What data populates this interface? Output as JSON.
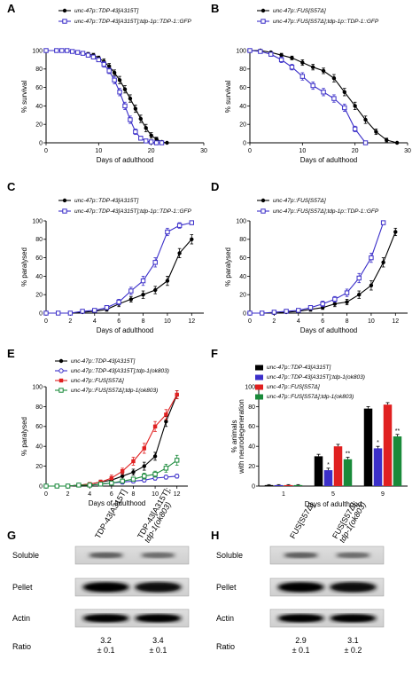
{
  "panels": [
    {
      "key": "A",
      "label": "A",
      "chart_data": {
        "type": "line",
        "xlabel": "Days of adulthood",
        "ylabel": "% survival",
        "xlim": [
          0,
          30
        ],
        "ylim": [
          0,
          100
        ],
        "xticks": [
          0,
          10,
          20,
          30
        ],
        "yticks": [
          0,
          20,
          40,
          60,
          80,
          100
        ],
        "series": [
          {
            "name": "unc-47p::TDP-43[A315T]",
            "color": "#000000",
            "marker": "circle",
            "x": [
              0,
              2,
              3,
              4,
              5,
              6,
              7,
              8,
              9,
              10,
              11,
              12,
              13,
              14,
              15,
              16,
              17,
              18,
              19,
              20,
              21,
              22,
              23
            ],
            "y": [
              100,
              100,
              100,
              100,
              99,
              98,
              97,
              96,
              95,
              92,
              88,
              83,
              76,
              68,
              58,
              48,
              37,
              26,
              16,
              8,
              4,
              1,
              0
            ],
            "err": [
              0,
              0,
              0,
              0,
              1,
              1,
              1,
              2,
              2,
              2,
              3,
              3,
              3,
              4,
              4,
              4,
              4,
              4,
              4,
              3,
              2,
              1,
              0
            ]
          },
          {
            "name": "unc-47p::TDP-43[A315T];tdp-1p::TDP-1::GFP",
            "color": "#3b2fc9",
            "marker": "square",
            "x": [
              0,
              2,
              3,
              4,
              5,
              6,
              7,
              8,
              9,
              10,
              11,
              12,
              13,
              14,
              15,
              16,
              17,
              18,
              19,
              20,
              21,
              22
            ],
            "y": [
              100,
              100,
              100,
              100,
              99,
              98,
              97,
              95,
              93,
              90,
              85,
              78,
              68,
              55,
              40,
              25,
              12,
              5,
              2,
              1,
              0,
              0
            ],
            "err": [
              0,
              0,
              0,
              0,
              1,
              1,
              1,
              2,
              2,
              2,
              3,
              3,
              4,
              4,
              4,
              4,
              3,
              2,
              1,
              1,
              0,
              0
            ]
          }
        ]
      }
    },
    {
      "key": "B",
      "label": "B",
      "chart_data": {
        "type": "line",
        "xlabel": "Days of adulthood",
        "ylabel": "% survival",
        "xlim": [
          0,
          30
        ],
        "ylim": [
          0,
          100
        ],
        "xticks": [
          0,
          10,
          20,
          30
        ],
        "yticks": [
          0,
          20,
          40,
          60,
          80,
          100
        ],
        "series": [
          {
            "name": "unc-47p::FUS[S57Δ]",
            "color": "#000000",
            "marker": "circle",
            "x": [
              0,
              2,
              4,
              6,
              8,
              10,
              12,
              14,
              16,
              18,
              20,
              22,
              24,
              26,
              28
            ],
            "y": [
              100,
              100,
              98,
              95,
              92,
              87,
              82,
              78,
              70,
              55,
              40,
              25,
              12,
              3,
              0
            ],
            "err": [
              0,
              0,
              1,
              2,
              2,
              3,
              3,
              3,
              4,
              4,
              4,
              4,
              3,
              2,
              0
            ]
          },
          {
            "name": "unc-47p::FUS[S57Δ];tdp-1p::TDP-1::GFP",
            "color": "#3b2fc9",
            "marker": "square",
            "x": [
              0,
              2,
              4,
              6,
              8,
              10,
              12,
              14,
              16,
              18,
              20,
              22
            ],
            "y": [
              100,
              99,
              96,
              90,
              82,
              72,
              62,
              55,
              48,
              38,
              15,
              0
            ],
            "err": [
              0,
              1,
              2,
              3,
              3,
              4,
              4,
              4,
              4,
              4,
              3,
              0
            ]
          }
        ]
      }
    },
    {
      "key": "C",
      "label": "C",
      "chart_data": {
        "type": "line",
        "xlabel": "Days of adulthood",
        "ylabel": "% paralysed",
        "xlim": [
          0,
          13
        ],
        "ylim": [
          0,
          100
        ],
        "xticks": [
          0,
          2,
          4,
          6,
          8,
          10,
          12
        ],
        "yticks": [
          0,
          20,
          40,
          60,
          80,
          100
        ],
        "series": [
          {
            "name": "unc-47p::TDP-43[A315T]",
            "color": "#000000",
            "marker": "circle",
            "x": [
              0,
              1,
              2,
              3,
              4,
              5,
              6,
              7,
              8,
              9,
              10,
              11,
              12
            ],
            "y": [
              0,
              0,
              0,
              1,
              2,
              4,
              10,
              15,
              20,
              25,
              35,
              65,
              80
            ],
            "err": [
              0,
              0,
              0,
              1,
              1,
              2,
              3,
              3,
              4,
              4,
              5,
              5,
              5
            ]
          },
          {
            "name": "unc-47p::TDP-43[A315T];tdp-1p::TDP-1::GFP",
            "color": "#3b2fc9",
            "marker": "square",
            "x": [
              0,
              1,
              2,
              3,
              4,
              5,
              6,
              7,
              8,
              9,
              10,
              11,
              12
            ],
            "y": [
              0,
              0,
              0,
              2,
              3,
              6,
              12,
              24,
              35,
              55,
              88,
              95,
              98
            ],
            "err": [
              0,
              0,
              0,
              1,
              1,
              2,
              3,
              4,
              5,
              5,
              4,
              3,
              2
            ]
          }
        ]
      }
    },
    {
      "key": "D",
      "label": "D",
      "chart_data": {
        "type": "line",
        "xlabel": "Days of adulthood",
        "ylabel": "% paralysed",
        "xlim": [
          0,
          13
        ],
        "ylim": [
          0,
          100
        ],
        "xticks": [
          0,
          2,
          4,
          6,
          8,
          10,
          12
        ],
        "yticks": [
          0,
          20,
          40,
          60,
          80,
          100
        ],
        "series": [
          {
            "name": "unc-47p::FUS[S57Δ]",
            "color": "#000000",
            "marker": "circle",
            "x": [
              0,
              1,
              2,
              3,
              4,
              5,
              6,
              7,
              8,
              9,
              10,
              11,
              12
            ],
            "y": [
              0,
              0,
              0,
              1,
              2,
              4,
              6,
              10,
              12,
              20,
              30,
              55,
              88
            ],
            "err": [
              0,
              0,
              0,
              1,
              1,
              2,
              2,
              3,
              3,
              4,
              5,
              5,
              4
            ]
          },
          {
            "name": "unc-47p::FUS[S57Δ];tdp-1p::TDP-1::GFP",
            "color": "#3b2fc9",
            "marker": "square",
            "x": [
              0,
              1,
              2,
              3,
              4,
              5,
              6,
              7,
              8,
              9,
              10,
              11
            ],
            "y": [
              0,
              0,
              1,
              2,
              3,
              6,
              10,
              15,
              22,
              38,
              60,
              98
            ],
            "err": [
              0,
              0,
              1,
              1,
              1,
              2,
              3,
              3,
              4,
              5,
              5,
              2
            ]
          }
        ]
      }
    },
    {
      "key": "E",
      "label": "E",
      "chart_data": {
        "type": "line",
        "xlabel": "Days of adulthood",
        "ylabel": "% paralysed",
        "xlim": [
          0,
          13
        ],
        "ylim": [
          0,
          100
        ],
        "xticks": [
          0,
          2,
          4,
          6,
          8,
          10,
          12
        ],
        "yticks": [
          0,
          20,
          40,
          60,
          80,
          100
        ],
        "series": [
          {
            "name": "unc-47p::TDP-43[A315T]",
            "color": "#000000",
            "marker": "circle",
            "x": [
              0,
              1,
              2,
              3,
              4,
              5,
              6,
              7,
              8,
              9,
              10,
              11,
              12
            ],
            "y": [
              0,
              0,
              0,
              1,
              2,
              4,
              6,
              10,
              14,
              20,
              30,
              65,
              92
            ],
            "err": [
              0,
              0,
              0,
              1,
              1,
              2,
              2,
              3,
              3,
              4,
              4,
              5,
              4
            ]
          },
          {
            "name": "unc-47p::TDP-43[A315T];tdp-1(ok803)",
            "color": "#3b2fc9",
            "marker": "circle-open",
            "x": [
              0,
              1,
              2,
              3,
              4,
              5,
              6,
              7,
              8,
              9,
              10,
              11,
              12
            ],
            "y": [
              0,
              0,
              0,
              1,
              1,
              2,
              3,
              4,
              5,
              6,
              8,
              9,
              10
            ],
            "err": [
              0,
              0,
              0,
              1,
              1,
              1,
              1,
              2,
              2,
              2,
              2,
              2,
              2
            ]
          },
          {
            "name": "unc-47p::FUS[S57Δ]",
            "color": "#e02020",
            "marker": "square-filled",
            "x": [
              0,
              1,
              2,
              3,
              4,
              5,
              6,
              7,
              8,
              9,
              10,
              11,
              12
            ],
            "y": [
              0,
              0,
              0,
              1,
              2,
              4,
              8,
              15,
              25,
              38,
              60,
              72,
              92
            ],
            "err": [
              0,
              0,
              0,
              1,
              1,
              2,
              3,
              3,
              4,
              5,
              5,
              5,
              4
            ]
          },
          {
            "name": "unc-47p::FUS[S57Δ];tdp-1(ok803)",
            "color": "#1a8a3a",
            "marker": "square",
            "x": [
              0,
              1,
              2,
              3,
              4,
              5,
              6,
              7,
              8,
              9,
              10,
              11,
              12
            ],
            "y": [
              0,
              0,
              0,
              1,
              1,
              2,
              3,
              5,
              7,
              10,
              12,
              18,
              26
            ],
            "err": [
              0,
              0,
              0,
              1,
              1,
              1,
              1,
              2,
              2,
              3,
              3,
              4,
              5
            ]
          }
        ]
      }
    },
    {
      "key": "F",
      "label": "F",
      "chart_data": {
        "type": "bar",
        "xlabel": "Days of adulthood",
        "ylabel": "% animals with neurodegeneration",
        "ylim": [
          0,
          100
        ],
        "yticks": [
          0,
          20,
          40,
          60,
          80,
          100
        ],
        "categories": [
          "1",
          "5",
          "9"
        ],
        "series": [
          {
            "name": "unc-47p::TDP-43[A315T]",
            "color": "#000000",
            "values": [
              1,
              30,
              78
            ],
            "err": [
              0.5,
              2,
              2
            ]
          },
          {
            "name": "unc-47p::TDP-43[A315T];tdp-1(ok803)",
            "color": "#3b2fc9",
            "values": [
              1,
              16,
              38
            ],
            "err": [
              0.5,
              2,
              2
            ]
          },
          {
            "name": "unc-47p::FUS[S57Δ]",
            "color": "#e02020",
            "values": [
              1,
              40,
              82
            ],
            "err": [
              0.5,
              2,
              2
            ]
          },
          {
            "name": "unc-47p::FUS[S57Δ];tdp-1(ok803)",
            "color": "#1a8a3a",
            "values": [
              1,
              27,
              50
            ],
            "err": [
              0.5,
              2,
              2
            ]
          }
        ],
        "annotations": [
          {
            "category": "5",
            "series": 1,
            "text": "*"
          },
          {
            "category": "5",
            "series": 3,
            "text": "**"
          },
          {
            "category": "9",
            "series": 1,
            "text": "*"
          },
          {
            "category": "9",
            "series": 3,
            "text": "**"
          }
        ]
      }
    }
  ],
  "blots": [
    {
      "key": "G",
      "label": "G",
      "lanes": [
        "TDP-43[A315T]",
        "TDP-43[A315T];\ntdp-1(ok803)"
      ],
      "rows": [
        "Soluble",
        "Pellet",
        "Actin"
      ],
      "ratio_label": "Ratio",
      "ratios": [
        [
          "3.2",
          "± 0.1"
        ],
        [
          "3.4",
          "± 0.1"
        ]
      ]
    },
    {
      "key": "H",
      "label": "H",
      "lanes": [
        "FUS[S57Δ]",
        "FUS[S57Δ];\ntdp-1(ok803)"
      ],
      "rows": [
        "Soluble",
        "Pellet",
        "Actin"
      ],
      "ratio_label": "Ratio",
      "ratios": [
        [
          "2.9",
          "± 0.1"
        ],
        [
          "3.1",
          "± 0.2"
        ]
      ]
    }
  ]
}
